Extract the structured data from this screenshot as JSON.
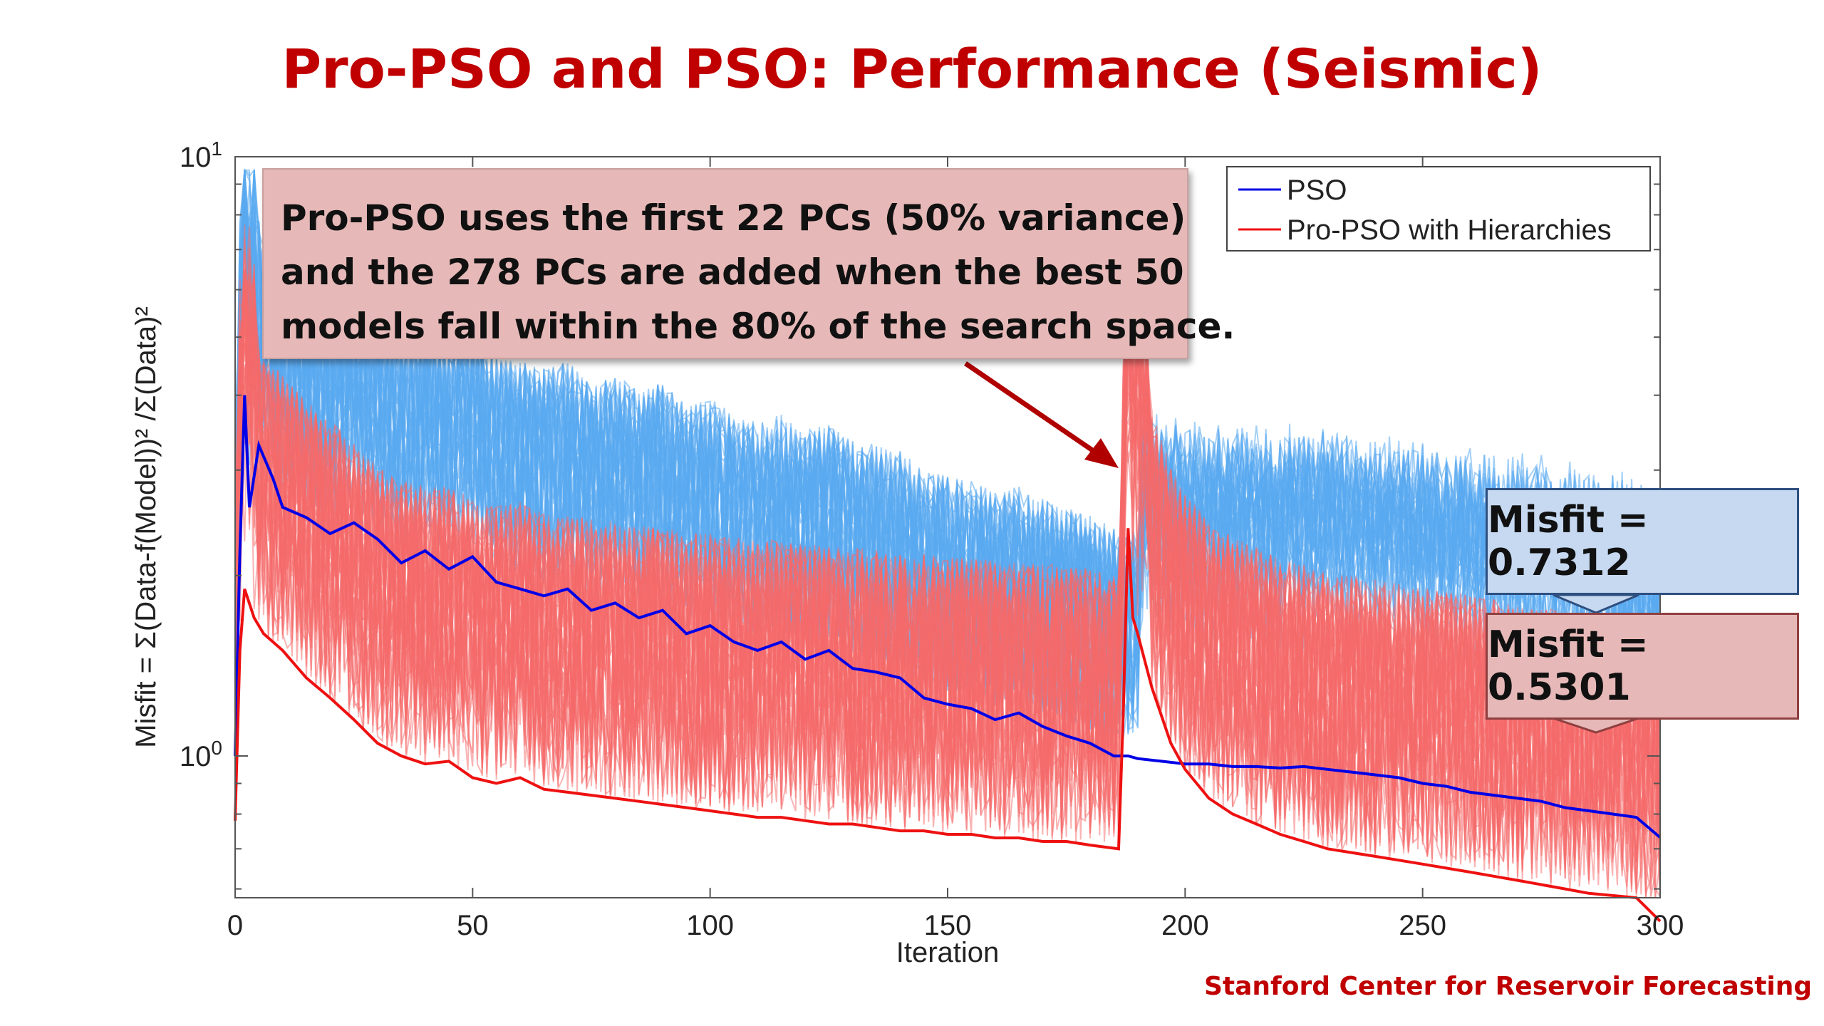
{
  "slide": {
    "title": "Pro-PSO and PSO: Performance (Seismic)",
    "footer": "Stanford Center for Reservoir Forecasting"
  },
  "callout": {
    "lines": [
      "Pro-PSO uses the first 22 PCs (50% variance)",
      "and the 278 PCs are added when the best 50",
      "models fall within the 80% of the search space."
    ]
  },
  "misfit_boxes": {
    "pso": "Misfit = 0.7312",
    "pro_pso": "Misfit = 0.5301"
  },
  "colors": {
    "title": "#c00000",
    "pso_best": "#0000e6",
    "pso_band": "#5aa9f0",
    "pro_best": "#ee1111",
    "pro_band": "#f56a6a",
    "callout_fill": "#e6b9b8",
    "misfit_pso_fill": "#c6d9f1"
  },
  "chart_data": {
    "type": "line",
    "xlabel": "Iteration",
    "ylabel": "Misfit = Σ(Data-f(Model))² /Σ(Data)²",
    "xlim": [
      0,
      300
    ],
    "ylim": [
      0.58,
      10
    ],
    "yscale": "log",
    "grid": false,
    "legend_position": "top-right",
    "x_ticks": [
      "0",
      "50",
      "100",
      "150",
      "200",
      "250",
      "300"
    ],
    "y_ticks": [
      {
        "value": 10,
        "base": "10",
        "exp": "1"
      },
      {
        "value": 1,
        "base": "10",
        "exp": "0"
      }
    ],
    "series": [
      {
        "name": "PSO",
        "color": "#0000e6",
        "points": [
          [
            0,
            1.0
          ],
          [
            1,
            2.2
          ],
          [
            2,
            4.0
          ],
          [
            3,
            2.6
          ],
          [
            5,
            3.3
          ],
          [
            8,
            2.9
          ],
          [
            10,
            2.6
          ],
          [
            15,
            2.5
          ],
          [
            20,
            2.35
          ],
          [
            25,
            2.45
          ],
          [
            30,
            2.3
          ],
          [
            35,
            2.1
          ],
          [
            40,
            2.2
          ],
          [
            45,
            2.05
          ],
          [
            50,
            2.15
          ],
          [
            55,
            1.95
          ],
          [
            60,
            1.9
          ],
          [
            65,
            1.85
          ],
          [
            70,
            1.9
          ],
          [
            75,
            1.75
          ],
          [
            80,
            1.8
          ],
          [
            85,
            1.7
          ],
          [
            90,
            1.75
          ],
          [
            95,
            1.6
          ],
          [
            100,
            1.65
          ],
          [
            105,
            1.55
          ],
          [
            110,
            1.5
          ],
          [
            115,
            1.55
          ],
          [
            120,
            1.45
          ],
          [
            125,
            1.5
          ],
          [
            130,
            1.4
          ],
          [
            135,
            1.38
          ],
          [
            140,
            1.35
          ],
          [
            145,
            1.25
          ],
          [
            150,
            1.22
          ],
          [
            155,
            1.2
          ],
          [
            160,
            1.15
          ],
          [
            165,
            1.18
          ],
          [
            170,
            1.12
          ],
          [
            175,
            1.08
          ],
          [
            180,
            1.05
          ],
          [
            185,
            1.0
          ],
          [
            188,
            1.0
          ],
          [
            190,
            0.99
          ],
          [
            195,
            0.98
          ],
          [
            200,
            0.97
          ],
          [
            205,
            0.97
          ],
          [
            210,
            0.96
          ],
          [
            215,
            0.96
          ],
          [
            220,
            0.955
          ],
          [
            225,
            0.96
          ],
          [
            230,
            0.95
          ],
          [
            235,
            0.94
          ],
          [
            240,
            0.93
          ],
          [
            245,
            0.92
          ],
          [
            250,
            0.9
          ],
          [
            255,
            0.89
          ],
          [
            260,
            0.87
          ],
          [
            265,
            0.86
          ],
          [
            270,
            0.85
          ],
          [
            275,
            0.84
          ],
          [
            280,
            0.82
          ],
          [
            285,
            0.81
          ],
          [
            290,
            0.8
          ],
          [
            295,
            0.79
          ],
          [
            300,
            0.7312
          ]
        ]
      },
      {
        "name": "Pro-PSO with Hierarchies",
        "color": "#ee1111",
        "points": [
          [
            0,
            0.78
          ],
          [
            1,
            1.5
          ],
          [
            2,
            1.9
          ],
          [
            4,
            1.7
          ],
          [
            6,
            1.6
          ],
          [
            10,
            1.5
          ],
          [
            15,
            1.35
          ],
          [
            20,
            1.25
          ],
          [
            25,
            1.15
          ],
          [
            30,
            1.05
          ],
          [
            35,
            1.0
          ],
          [
            40,
            0.97
          ],
          [
            45,
            0.98
          ],
          [
            50,
            0.92
          ],
          [
            55,
            0.9
          ],
          [
            60,
            0.92
          ],
          [
            65,
            0.88
          ],
          [
            70,
            0.87
          ],
          [
            75,
            0.86
          ],
          [
            80,
            0.85
          ],
          [
            85,
            0.84
          ],
          [
            90,
            0.83
          ],
          [
            95,
            0.82
          ],
          [
            100,
            0.81
          ],
          [
            105,
            0.8
          ],
          [
            110,
            0.79
          ],
          [
            115,
            0.79
          ],
          [
            120,
            0.78
          ],
          [
            125,
            0.77
          ],
          [
            130,
            0.77
          ],
          [
            135,
            0.76
          ],
          [
            140,
            0.75
          ],
          [
            145,
            0.75
          ],
          [
            150,
            0.74
          ],
          [
            155,
            0.74
          ],
          [
            160,
            0.73
          ],
          [
            165,
            0.73
          ],
          [
            170,
            0.72
          ],
          [
            175,
            0.72
          ],
          [
            180,
            0.71
          ],
          [
            186,
            0.7
          ],
          [
            187,
            1.2
          ],
          [
            188,
            2.4
          ],
          [
            189,
            1.7
          ],
          [
            190,
            1.6
          ],
          [
            193,
            1.3
          ],
          [
            197,
            1.05
          ],
          [
            200,
            0.95
          ],
          [
            205,
            0.85
          ],
          [
            210,
            0.8
          ],
          [
            215,
            0.77
          ],
          [
            220,
            0.74
          ],
          [
            225,
            0.72
          ],
          [
            230,
            0.7
          ],
          [
            235,
            0.69
          ],
          [
            240,
            0.68
          ],
          [
            245,
            0.67
          ],
          [
            250,
            0.66
          ],
          [
            255,
            0.65
          ],
          [
            260,
            0.64
          ],
          [
            265,
            0.63
          ],
          [
            270,
            0.62
          ],
          [
            275,
            0.61
          ],
          [
            280,
            0.6
          ],
          [
            285,
            0.59
          ],
          [
            290,
            0.585
          ],
          [
            295,
            0.58
          ],
          [
            300,
            0.5301
          ]
        ]
      }
    ]
  }
}
